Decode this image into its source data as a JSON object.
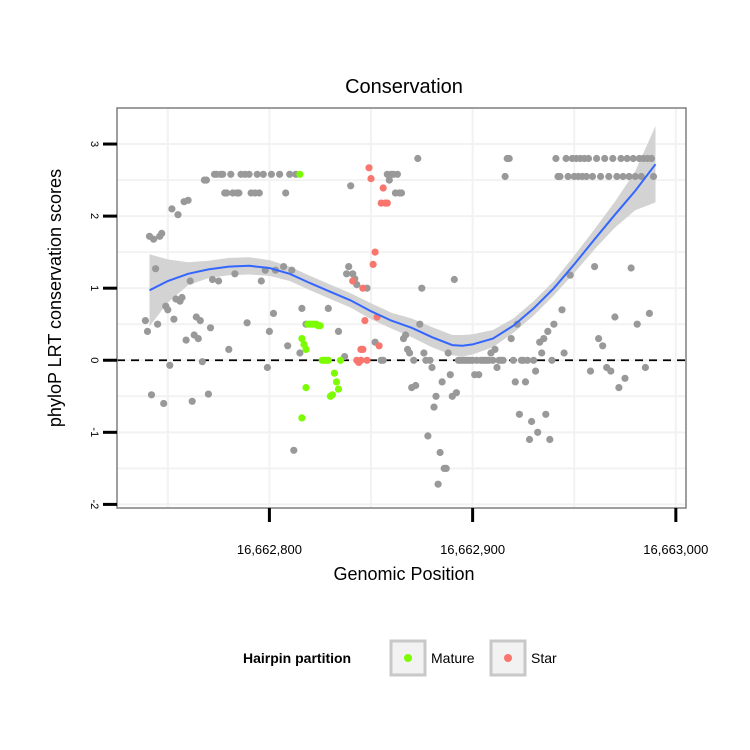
{
  "chart_data": {
    "type": "scatter",
    "title": "Conservation",
    "xlabel": "Genomic Position",
    "ylabel": "phyloP LRT conservation scores",
    "xlim": [
      16662725,
      16663005
    ],
    "ylim": [
      -2.05,
      3.5
    ],
    "x_ticks": [
      {
        "value": 16662800,
        "label": "16,662,800"
      },
      {
        "value": 16662900,
        "label": "16,662,900"
      },
      {
        "value": 16663000,
        "label": "16,663,000"
      }
    ],
    "y_ticks": [
      {
        "value": -2,
        "label": "-2"
      },
      {
        "value": -1,
        "label": "-1"
      },
      {
        "value": 0,
        "label": "0"
      },
      {
        "value": 1,
        "label": "1"
      },
      {
        "value": 2,
        "label": "2"
      },
      {
        "value": 3,
        "label": "3"
      }
    ],
    "grid": true,
    "reference_line": {
      "y": 0,
      "style": "dashed",
      "color": "#000000"
    },
    "legend": {
      "title": "Hairpin partition",
      "position": "bottom",
      "entries": [
        {
          "label": "Mature",
          "color": "#7CFC00"
        },
        {
          "label": "Star",
          "color": "#F8766D"
        }
      ]
    },
    "colors": {
      "other": "#999999",
      "Mature": "#7CFC00",
      "Star": "#F8766D",
      "smooth": "#3366FF",
      "band": "#D3D3D3"
    },
    "series": [
      {
        "group": "other",
        "points": [
          [
            16662739,
            0.55
          ],
          [
            16662740,
            0.4
          ],
          [
            16662741,
            1.72
          ],
          [
            16662742,
            -0.48
          ],
          [
            16662743,
            1.68
          ],
          [
            16662744,
            1.27
          ],
          [
            16662745,
            0.5
          ],
          [
            16662746,
            1.72
          ],
          [
            16662747,
            1.76
          ],
          [
            16662748,
            -0.6
          ],
          [
            16662749,
            0.75
          ],
          [
            16662750,
            0.7
          ],
          [
            16662751,
            -0.07
          ],
          [
            16662752,
            2.1
          ],
          [
            16662753,
            0.57
          ],
          [
            16662754,
            0.85
          ],
          [
            16662755,
            2.02
          ],
          [
            16662756,
            0.82
          ],
          [
            16662757,
            0.87
          ],
          [
            16662758,
            2.2
          ],
          [
            16662759,
            0.28
          ],
          [
            16662760,
            2.22
          ],
          [
            16662761,
            1.1
          ],
          [
            16662762,
            -0.57
          ],
          [
            16662763,
            0.35
          ],
          [
            16662764,
            0.6
          ],
          [
            16662765,
            0.3
          ],
          [
            16662766,
            0.55
          ],
          [
            16662767,
            -0.02
          ],
          [
            16662768,
            2.5
          ],
          [
            16662769,
            2.5
          ],
          [
            16662770,
            -0.47
          ],
          [
            16662771,
            0.45
          ],
          [
            16662772,
            1.12
          ],
          [
            16662773,
            2.58
          ],
          [
            16662774,
            2.58
          ],
          [
            16662775,
            1.1
          ],
          [
            16662776,
            2.58
          ],
          [
            16662777,
            2.58
          ],
          [
            16662778,
            2.32
          ],
          [
            16662779,
            2.32
          ],
          [
            16662780,
            0.15
          ],
          [
            16662781,
            2.58
          ],
          [
            16662782,
            2.32
          ],
          [
            16662783,
            1.2
          ],
          [
            16662784,
            2.32
          ],
          [
            16662785,
            2.32
          ],
          [
            16662786,
            2.58
          ],
          [
            16662788,
            2.58
          ],
          [
            16662789,
            0.52
          ],
          [
            16662790,
            2.58
          ],
          [
            16662791,
            2.32
          ],
          [
            16662793,
            2.32
          ],
          [
            16662794,
            2.58
          ],
          [
            16662795,
            2.32
          ],
          [
            16662796,
            1.1
          ],
          [
            16662797,
            2.58
          ],
          [
            16662798,
            1.25
          ],
          [
            16662799,
            -0.1
          ],
          [
            16662800,
            0.4
          ],
          [
            16662801,
            2.58
          ],
          [
            16662802,
            0.65
          ],
          [
            16662803,
            1.25
          ],
          [
            16662805,
            2.58
          ],
          [
            16662807,
            1.3
          ],
          [
            16662808,
            2.32
          ],
          [
            16662809,
            0.2
          ],
          [
            16662810,
            2.58
          ],
          [
            16662811,
            1.25
          ],
          [
            16662812,
            -1.25
          ],
          [
            16662813,
            2.58
          ],
          [
            16662815,
            0.1
          ],
          [
            16662816,
            0.72
          ],
          [
            16662818,
            0.5
          ],
          [
            16662829,
            0.72
          ],
          [
            16662834,
            0.4
          ],
          [
            16662837,
            0.05
          ],
          [
            16662838,
            1.2
          ],
          [
            16662839,
            1.3
          ],
          [
            16662840,
            2.42
          ],
          [
            16662841,
            1.2
          ],
          [
            16662842,
            1.13
          ],
          [
            16662843,
            1.05
          ],
          [
            16662848,
            1.0
          ],
          [
            16662852,
            0.25
          ],
          [
            16662855,
            0.0
          ],
          [
            16662856,
            0.0
          ],
          [
            16662858,
            2.58
          ],
          [
            16662859,
            2.5
          ],
          [
            16662860,
            2.58
          ],
          [
            16662861,
            2.58
          ],
          [
            16662862,
            2.32
          ],
          [
            16662863,
            2.58
          ],
          [
            16662864,
            2.32
          ],
          [
            16662865,
            2.32
          ],
          [
            16662866,
            0.3
          ],
          [
            16662867,
            0.35
          ],
          [
            16662868,
            0.15
          ],
          [
            16662869,
            0.1
          ],
          [
            16662870,
            -0.38
          ],
          [
            16662871,
            0.0
          ],
          [
            16662872,
            -0.35
          ],
          [
            16662873,
            2.8
          ],
          [
            16662874,
            0.5
          ],
          [
            16662875,
            1.0
          ],
          [
            16662876,
            0.1
          ],
          [
            16662877,
            0.0
          ],
          [
            16662878,
            -1.05
          ],
          [
            16662879,
            0.0
          ],
          [
            16662880,
            -0.1
          ],
          [
            16662881,
            -0.65
          ],
          [
            16662882,
            -0.5
          ],
          [
            16662883,
            -1.72
          ],
          [
            16662884,
            -1.28
          ],
          [
            16662885,
            -0.3
          ],
          [
            16662886,
            -1.5
          ],
          [
            16662887,
            -1.5
          ],
          [
            16662888,
            0.1
          ],
          [
            16662889,
            -0.2
          ],
          [
            16662890,
            -0.5
          ],
          [
            16662891,
            1.12
          ],
          [
            16662892,
            -0.45
          ],
          [
            16662893,
            0.0
          ],
          [
            16662894,
            0.0
          ],
          [
            16662895,
            0.0
          ],
          [
            16662896,
            0.0
          ],
          [
            16662897,
            0.0
          ],
          [
            16662898,
            0.0
          ],
          [
            16662899,
            0.0
          ],
          [
            16662900,
            0.0
          ],
          [
            16662901,
            -0.2
          ],
          [
            16662902,
            0.0
          ],
          [
            16662903,
            -0.2
          ],
          [
            16662904,
            0.0
          ],
          [
            16662905,
            0.0
          ],
          [
            16662906,
            0.0
          ],
          [
            16662907,
            0.0
          ],
          [
            16662908,
            0.0
          ],
          [
            16662909,
            0.1
          ],
          [
            16662910,
            0.0
          ],
          [
            16662911,
            0.15
          ],
          [
            16662912,
            -0.1
          ],
          [
            16662913,
            0.0
          ],
          [
            16662914,
            0.0
          ],
          [
            16662915,
            0.0
          ],
          [
            16662916,
            2.55
          ],
          [
            16662917,
            2.8
          ],
          [
            16662918,
            2.8
          ],
          [
            16662919,
            0.3
          ],
          [
            16662920,
            0.0
          ],
          [
            16662921,
            -0.3
          ],
          [
            16662922,
            0.5
          ],
          [
            16662923,
            -0.75
          ],
          [
            16662924,
            0.0
          ],
          [
            16662925,
            0.0
          ],
          [
            16662926,
            -0.3
          ],
          [
            16662927,
            0.0
          ],
          [
            16662928,
            -1.1
          ],
          [
            16662929,
            -0.85
          ],
          [
            16662930,
            0.0
          ],
          [
            16662931,
            -0.15
          ],
          [
            16662932,
            -1.0
          ],
          [
            16662933,
            0.25
          ],
          [
            16662934,
            0.1
          ],
          [
            16662935,
            0.3
          ],
          [
            16662936,
            -0.75
          ],
          [
            16662937,
            0.4
          ],
          [
            16662938,
            -1.1
          ],
          [
            16662939,
            0.0
          ],
          [
            16662940,
            0.5
          ],
          [
            16662941,
            2.8
          ],
          [
            16662942,
            2.55
          ],
          [
            16662943,
            2.55
          ],
          [
            16662944,
            0.7
          ],
          [
            16662945,
            0.1
          ],
          [
            16662946,
            2.8
          ],
          [
            16662947,
            2.55
          ],
          [
            16662948,
            1.18
          ],
          [
            16662949,
            2.8
          ],
          [
            16662950,
            2.55
          ],
          [
            16662951,
            2.8
          ],
          [
            16662952,
            2.55
          ],
          [
            16662953,
            2.8
          ],
          [
            16662954,
            2.55
          ],
          [
            16662955,
            2.8
          ],
          [
            16662956,
            2.55
          ],
          [
            16662957,
            2.8
          ],
          [
            16662958,
            -0.15
          ],
          [
            16662959,
            2.55
          ],
          [
            16662960,
            1.3
          ],
          [
            16662961,
            2.8
          ],
          [
            16662962,
            0.3
          ],
          [
            16662963,
            2.55
          ],
          [
            16662964,
            0.2
          ],
          [
            16662965,
            2.8
          ],
          [
            16662966,
            -0.1
          ],
          [
            16662967,
            2.55
          ],
          [
            16662968,
            -0.15
          ],
          [
            16662969,
            2.8
          ],
          [
            16662970,
            0.6
          ],
          [
            16662971,
            2.55
          ],
          [
            16662972,
            -0.38
          ],
          [
            16662973,
            2.8
          ],
          [
            16662974,
            2.55
          ],
          [
            16662975,
            -0.25
          ],
          [
            16662976,
            2.8
          ],
          [
            16662977,
            2.55
          ],
          [
            16662978,
            1.28
          ],
          [
            16662979,
            2.8
          ],
          [
            16662980,
            2.55
          ],
          [
            16662981,
            0.5
          ],
          [
            16662982,
            2.8
          ],
          [
            16662983,
            2.55
          ],
          [
            16662984,
            2.8
          ],
          [
            16662985,
            -0.1
          ],
          [
            16662986,
            2.8
          ],
          [
            16662987,
            0.65
          ],
          [
            16662988,
            2.8
          ],
          [
            16662989,
            2.55
          ]
        ]
      },
      {
        "group": "Mature",
        "points": [
          [
            16662815,
            2.58
          ],
          [
            16662816,
            0.3
          ],
          [
            16662816,
            -0.8
          ],
          [
            16662817,
            0.22
          ],
          [
            16662818,
            -0.38
          ],
          [
            16662818,
            0.15
          ],
          [
            16662819,
            0.5
          ],
          [
            16662820,
            0.5
          ],
          [
            16662821,
            0.5
          ],
          [
            16662822,
            0.5
          ],
          [
            16662823,
            0.5
          ],
          [
            16662824,
            0.48
          ],
          [
            16662825,
            0.48
          ],
          [
            16662826,
            0.0
          ],
          [
            16662827,
            0.0
          ],
          [
            16662828,
            0.0
          ],
          [
            16662829,
            0.0
          ],
          [
            16662830,
            -0.5
          ],
          [
            16662831,
            -0.48
          ],
          [
            16662832,
            -0.18
          ],
          [
            16662833,
            -0.3
          ],
          [
            16662834,
            -0.4
          ],
          [
            16662835,
            0.0
          ]
        ]
      },
      {
        "group": "Star",
        "points": [
          [
            16662843,
            0.0
          ],
          [
            16662844,
            -0.03
          ],
          [
            16662845,
            0.0
          ],
          [
            16662846,
            0.15
          ],
          [
            16662847,
            0.55
          ],
          [
            16662848,
            0.0
          ],
          [
            16662849,
            2.67
          ],
          [
            16662850,
            2.52
          ],
          [
            16662851,
            1.33
          ],
          [
            16662852,
            1.5
          ],
          [
            16662853,
            0.6
          ],
          [
            16662854,
            0.2
          ],
          [
            16662855,
            2.18
          ],
          [
            16662856,
            2.39
          ],
          [
            16662857,
            2.18
          ],
          [
            16662858,
            2.18
          ],
          [
            16662841,
            1.1
          ],
          [
            16662846,
            1.0
          ],
          [
            16662845,
            0.15
          ]
        ]
      }
    ],
    "smooth": {
      "x": [
        16662741,
        16662750,
        16662760,
        16662770,
        16662780,
        16662790,
        16662800,
        16662810,
        16662820,
        16662830,
        16662840,
        16662850,
        16662860,
        16662870,
        16662880,
        16662890,
        16662895,
        16662900,
        16662910,
        16662920,
        16662930,
        16662940,
        16662950,
        16662960,
        16662970,
        16662980,
        16662990
      ],
      "y": [
        0.97,
        1.1,
        1.2,
        1.26,
        1.3,
        1.31,
        1.28,
        1.2,
        1.07,
        0.95,
        0.83,
        0.68,
        0.55,
        0.45,
        0.32,
        0.21,
        0.2,
        0.22,
        0.3,
        0.48,
        0.72,
        1.0,
        1.33,
        1.68,
        2.02,
        2.35,
        2.72
      ],
      "se_upper": [
        1.47,
        1.4,
        1.36,
        1.38,
        1.42,
        1.43,
        1.39,
        1.3,
        1.17,
        1.05,
        0.93,
        0.79,
        0.66,
        0.58,
        0.46,
        0.35,
        0.35,
        0.36,
        0.42,
        0.58,
        0.82,
        1.1,
        1.45,
        1.82,
        2.2,
        2.62,
        3.25
      ],
      "se_lower": [
        0.47,
        0.8,
        1.04,
        1.14,
        1.18,
        1.19,
        1.17,
        1.1,
        0.97,
        0.85,
        0.73,
        0.57,
        0.44,
        0.32,
        0.18,
        0.07,
        0.05,
        0.08,
        0.18,
        0.38,
        0.62,
        0.9,
        1.21,
        1.54,
        1.84,
        2.08,
        2.19
      ]
    }
  }
}
